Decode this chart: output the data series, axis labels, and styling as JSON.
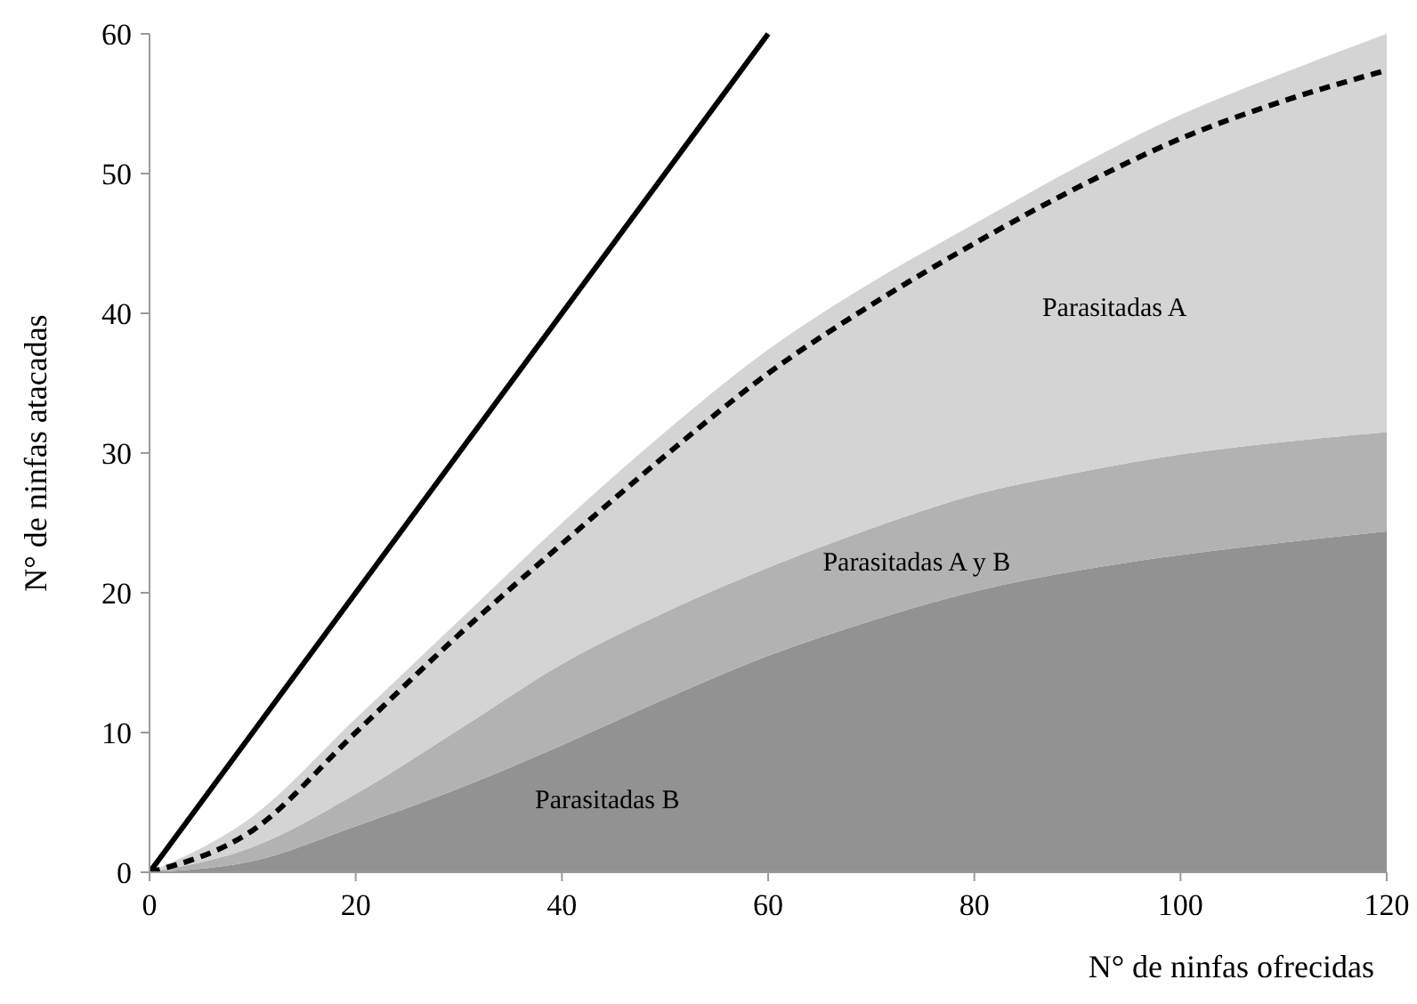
{
  "chart_data": {
    "type": "area",
    "stacked": true,
    "xlabel": "N° de ninfas ofrecidas",
    "ylabel": "N° de ninfas atacadas",
    "x": [
      0,
      10,
      20,
      30,
      40,
      50,
      60,
      70,
      80,
      90,
      100,
      110,
      120
    ],
    "xlim": [
      0,
      120
    ],
    "xticks": [
      0,
      20,
      40,
      60,
      80,
      100,
      120
    ],
    "ylim": [
      0,
      60
    ],
    "yticks": [
      0,
      10,
      20,
      30,
      40,
      50,
      60
    ],
    "grid": false,
    "series": [
      {
        "name": "Parasitadas B",
        "color": "#929292",
        "values": [
          0,
          0.8,
          3.3,
          6,
          9.1,
          12.4,
          15.5,
          18,
          20.1,
          21.6,
          22.7,
          23.6,
          24.4
        ]
      },
      {
        "name": "Parasitadas A y B",
        "color": "#b2b2b2",
        "values": [
          0,
          1,
          2.3,
          4.2,
          5.8,
          6.2,
          6.3,
          6.6,
          6.9,
          7,
          7.2,
          7.2,
          7.1
        ]
      },
      {
        "name": "Parasitadas A",
        "color": "#d4d4d4",
        "values": [
          0,
          2.2,
          5.4,
          7.8,
          10.1,
          12.9,
          15.6,
          17.6,
          19.4,
          21.9,
          24.3,
          26.4,
          28.5
        ]
      },
      {
        "type": "line",
        "color": "#000000",
        "line_style": "solid",
        "x": [
          0,
          60
        ],
        "values": [
          0,
          60
        ]
      },
      {
        "type": "line",
        "color": "#000000",
        "line_style": "dashed",
        "x": [
          0,
          10,
          20,
          30,
          40,
          50,
          60,
          70,
          80,
          90,
          100,
          110,
          120
        ],
        "values": [
          0,
          3,
          10,
          17,
          23.5,
          29.8,
          35.7,
          40.6,
          45,
          49,
          52.5,
          55.2,
          57.4
        ]
      }
    ]
  }
}
